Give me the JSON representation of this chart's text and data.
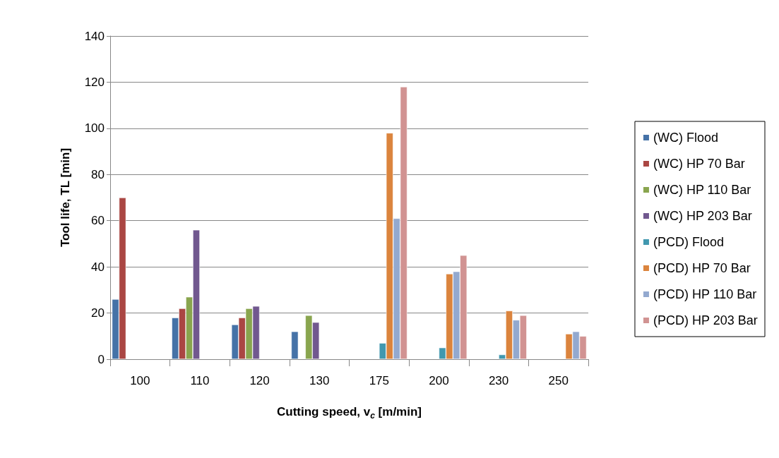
{
  "chart_data": {
    "type": "bar",
    "xlabel": "Cutting speed, v$_{c}$ [m/min]",
    "ylabel": "Tool life, TL [min]",
    "categories": [
      "100",
      "110",
      "120",
      "130",
      "175",
      "200",
      "230",
      "250"
    ],
    "series": [
      {
        "name": "(WC) Flood",
        "color": "#4572a7",
        "values": [
          26,
          18,
          15,
          12,
          null,
          null,
          null,
          null
        ]
      },
      {
        "name": "(WC) HP 70 Bar",
        "color": "#aa4643",
        "values": [
          70,
          22,
          18,
          null,
          null,
          null,
          null,
          null
        ]
      },
      {
        "name": "(WC) HP 110 Bar",
        "color": "#89a54e",
        "values": [
          null,
          27,
          22,
          19,
          null,
          null,
          null,
          null
        ]
      },
      {
        "name": "(WC) HP 203 Bar",
        "color": "#71588f",
        "values": [
          null,
          56,
          23,
          16,
          null,
          null,
          null,
          null
        ]
      },
      {
        "name": "(PCD) Flood",
        "color": "#4198af",
        "values": [
          null,
          null,
          null,
          null,
          7,
          5,
          2,
          null
        ]
      },
      {
        "name": "(PCD) HP 70 Bar",
        "color": "#db843d",
        "values": [
          null,
          null,
          null,
          null,
          98,
          37,
          21,
          11
        ]
      },
      {
        "name": "(PCD) HP 110 Bar",
        "color": "#93a9cf",
        "values": [
          null,
          null,
          null,
          null,
          61,
          38,
          17,
          12
        ]
      },
      {
        "name": "(PCD) HP 203 Bar",
        "color": "#d19392",
        "values": [
          null,
          null,
          null,
          null,
          118,
          45,
          19,
          10
        ]
      }
    ],
    "ylim": [
      0,
      140
    ],
    "yticks": [
      0,
      20,
      40,
      60,
      80,
      100,
      120,
      140
    ],
    "grid": "y",
    "legend": "right"
  }
}
